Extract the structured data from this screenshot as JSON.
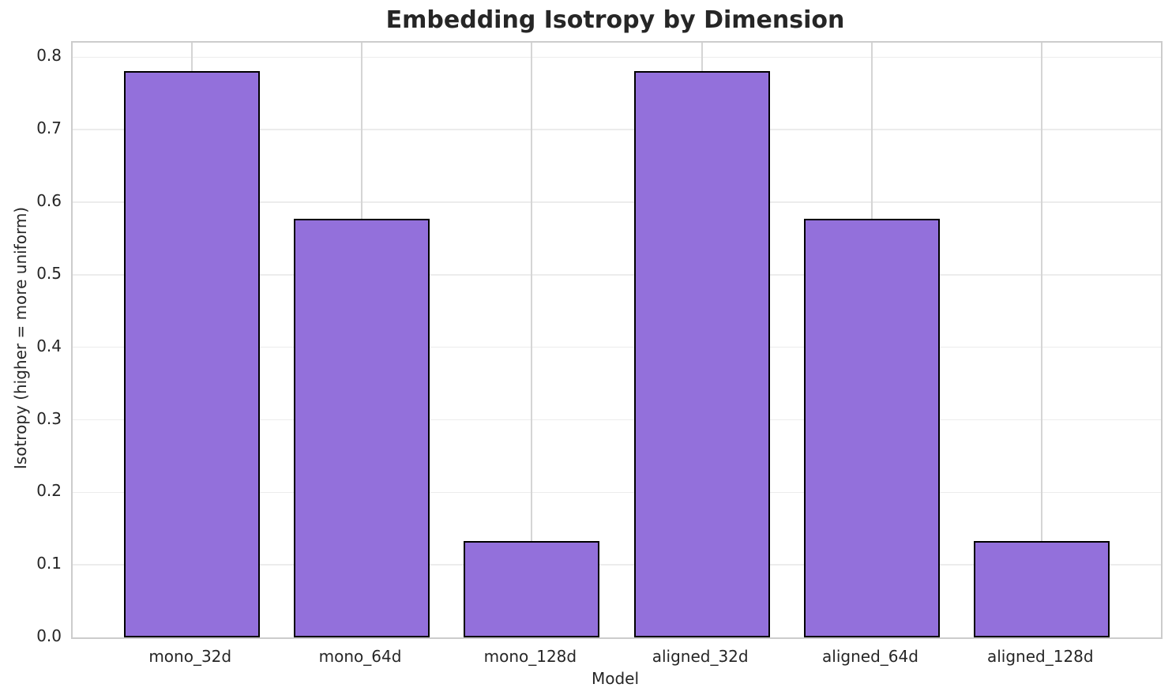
{
  "chart_data": {
    "type": "bar",
    "title": "Embedding Isotropy by Dimension",
    "xlabel": "Model",
    "ylabel": "Isotropy (higher = more uniform)",
    "categories": [
      "mono_32d",
      "mono_64d",
      "mono_128d",
      "aligned_32d",
      "aligned_64d",
      "aligned_128d"
    ],
    "values": [
      0.781,
      0.577,
      0.133,
      0.781,
      0.577,
      0.133
    ],
    "yticks": [
      0.0,
      0.1,
      0.2,
      0.3,
      0.4,
      0.5,
      0.6,
      0.7,
      0.8
    ],
    "ytick_labels": [
      "0.0",
      "0.1",
      "0.2",
      "0.3",
      "0.4",
      "0.5",
      "0.6",
      "0.7",
      "0.8"
    ],
    "ylim": [
      0.0,
      0.82
    ],
    "xlim": [
      -0.7,
      5.7
    ],
    "bar_width": 0.8,
    "grid": "on",
    "legend_position": "none",
    "colors": {
      "bar_fill": "#9370db",
      "bar_edge": "#000000",
      "grid_horizontal": "#ececec",
      "grid_vertical": "#d5d5d5",
      "spine": "#cccccc",
      "text": "#262626"
    }
  }
}
